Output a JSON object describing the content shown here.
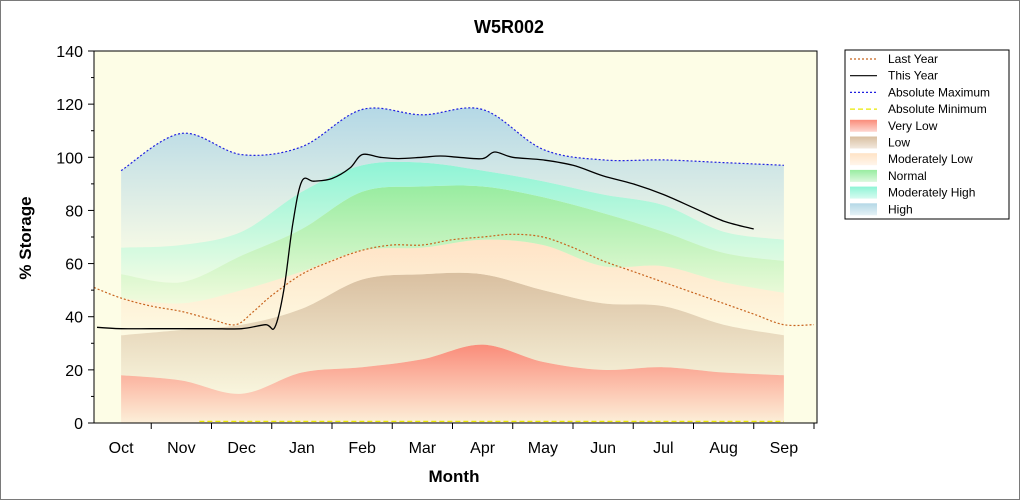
{
  "chart_data": {
    "type": "area",
    "title": "W5R002",
    "xlabel": "Month",
    "ylabel": "% Storage",
    "ylim": [
      0,
      140
    ],
    "yticks": [
      0,
      20,
      40,
      60,
      80,
      100,
      120,
      140
    ],
    "x_unit": "month index (0 = Oct 1, 1 = Nov 1, ...)",
    "xlim": [
      -0.45,
      11.55
    ],
    "categories": [
      "Oct",
      "Nov",
      "Dec",
      "Jan",
      "Feb",
      "Mar",
      "Apr",
      "May",
      "Jun",
      "Jul",
      "Aug",
      "Sep"
    ],
    "legend_position": "right",
    "grid": false,
    "band_x": [
      0,
      1,
      2,
      3,
      4,
      5,
      6,
      7,
      8,
      9,
      10,
      11
    ],
    "bands": [
      {
        "name": "Very Low",
        "color": "#fa8c7a",
        "top": [
          18,
          16,
          11,
          19,
          21,
          24,
          29.5,
          23,
          20,
          21,
          19,
          18
        ]
      },
      {
        "name": "Low",
        "color": "#d9bfa0",
        "top": [
          33,
          35,
          37,
          43,
          54,
          56,
          56,
          50,
          45,
          44,
          37,
          33
        ]
      },
      {
        "name": "Moderately Low",
        "color": "#ffe3c6",
        "top": [
          47,
          45,
          50,
          57,
          65,
          66,
          69,
          67,
          59,
          59,
          53,
          49
        ]
      },
      {
        "name": "Normal",
        "color": "#98eca0",
        "top": [
          56,
          53,
          63,
          73,
          87,
          89,
          89,
          85,
          79,
          72,
          64,
          61
        ]
      },
      {
        "name": "Moderately High",
        "color": "#8ef4d6",
        "top": [
          66,
          67,
          72,
          87,
          97,
          98,
          95,
          91,
          86,
          82,
          72,
          69
        ]
      },
      {
        "name": "High",
        "color": "#b4d8e6",
        "top": [
          95,
          109,
          101,
          104,
          118,
          116,
          118,
          103,
          99,
          99,
          98,
          97
        ]
      }
    ],
    "series": [
      {
        "name": "Last Year",
        "color": "#c8641e",
        "style": "dotted",
        "x": [
          -0.45,
          0,
          0.5,
          1,
          1.5,
          1.9,
          2.2,
          2.5,
          3,
          3.5,
          4,
          4.5,
          5,
          5.5,
          6,
          6.5,
          7,
          7.5,
          8,
          8.5,
          9,
          9.5,
          10,
          10.5,
          11,
          11.5
        ],
        "y": [
          51,
          47,
          44,
          42,
          39,
          37,
          42,
          48,
          56,
          61,
          65,
          67,
          67,
          69,
          70,
          71,
          70,
          66,
          61,
          57,
          53,
          49,
          45,
          41,
          37,
          37
        ]
      },
      {
        "name": "This Year",
        "color": "#000000",
        "style": "solid",
        "x": [
          -0.4,
          0,
          0.5,
          1,
          1.5,
          2,
          2.4,
          2.55,
          2.7,
          2.85,
          3,
          3.2,
          3.5,
          3.8,
          4,
          4.3,
          4.6,
          5,
          5.3,
          5.6,
          6,
          6.2,
          6.5,
          7,
          7.5,
          8,
          8.5,
          9,
          9.5,
          10,
          10.5
        ],
        "y": [
          36,
          35.5,
          35.5,
          35.5,
          35.5,
          35.5,
          37,
          36,
          50,
          75,
          91,
          91,
          92,
          96,
          101,
          100,
          99.5,
          100,
          100.5,
          100,
          99.5,
          102,
          100,
          99,
          97,
          93,
          90,
          86,
          81,
          76,
          73
        ]
      },
      {
        "name": "Absolute Maximum",
        "color": "#2020e0",
        "style": "dotted",
        "follows_band": "High"
      },
      {
        "name": "Absolute Minimum",
        "color": "#e8e800",
        "style": "dashed",
        "x": [
          1.3,
          11
        ],
        "y": [
          0.6,
          0.6
        ]
      }
    ],
    "legend": [
      {
        "name": "Last Year",
        "kind": "line",
        "color": "#c8641e",
        "style": "dotted"
      },
      {
        "name": "This Year",
        "kind": "line",
        "color": "#000000",
        "style": "solid"
      },
      {
        "name": "Absolute Maximum",
        "kind": "line",
        "color": "#2020e0",
        "style": "dotted"
      },
      {
        "name": "Absolute Minimum",
        "kind": "line",
        "color": "#e8e800",
        "style": "dashed"
      },
      {
        "name": "Very Low",
        "kind": "area",
        "color": "#fa8c7a"
      },
      {
        "name": "Low",
        "kind": "area",
        "color": "#d9bfa0"
      },
      {
        "name": "Moderately Low",
        "kind": "area",
        "color": "#ffe3c6"
      },
      {
        "name": "Normal",
        "kind": "area",
        "color": "#98eca0"
      },
      {
        "name": "Moderately High",
        "kind": "area",
        "color": "#8ef4d6"
      },
      {
        "name": "High",
        "kind": "area",
        "color": "#b4d8e6"
      }
    ],
    "plot_background": "#fdfde6"
  }
}
